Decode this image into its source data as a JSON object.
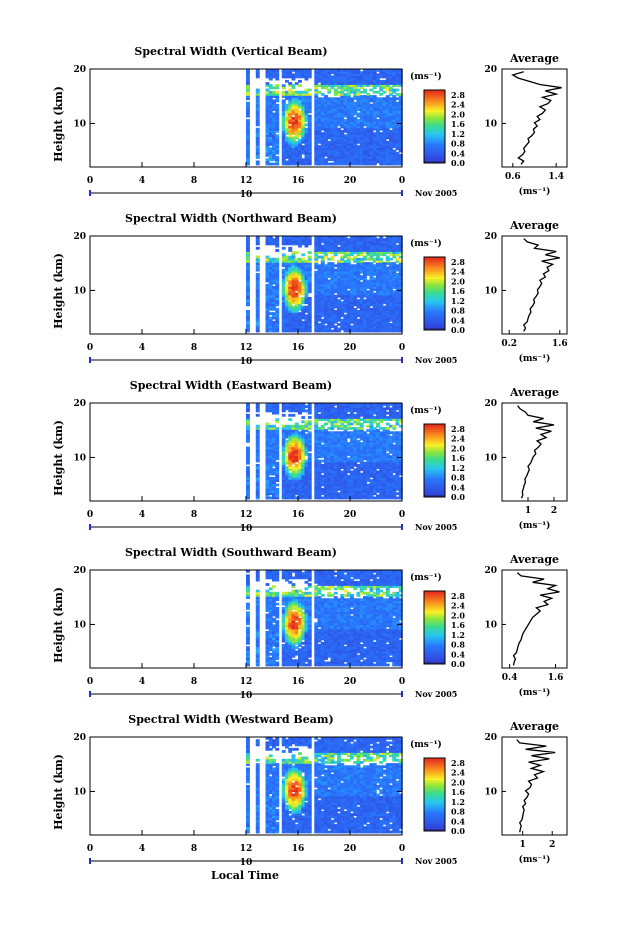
{
  "chart_data": {
    "type": "heatmap",
    "date_label": "Nov 2005",
    "x_label": "Local Time",
    "y_label": "Height (km)",
    "unit_label": "(ms⁻¹)",
    "avg_title": "Average",
    "time_ticks": [
      "0",
      "4",
      "8",
      "12",
      "16",
      "20",
      "0"
    ],
    "time_range": [
      0,
      24
    ],
    "day_label": "10",
    "height_range": [
      2,
      20
    ],
    "height_ticks": [
      "20",
      "10"
    ],
    "colorbar_ticks": [
      "2.8",
      "2.4",
      "2.0",
      "1.6",
      "1.2",
      "0.8",
      "0.4",
      "0.0"
    ],
    "colorbar_range": [
      0,
      3
    ],
    "panels": [
      {
        "title": "Spectral Width (Vertical Beam)",
        "avg_ticks": [
          "0.6",
          "1.4"
        ],
        "avg_xlim": [
          0.4,
          1.6
        ],
        "avg_profile": [
          0.75,
          0.8,
          0.7,
          0.78,
          0.82,
          0.8,
          0.85,
          0.9,
          0.88,
          0.95,
          1.0,
          0.98,
          1.05,
          1.0,
          1.1,
          1.05,
          1.15,
          1.2,
          1.1,
          1.25,
          1.3,
          1.15,
          1.4,
          1.2,
          1.5,
          1.1,
          0.9,
          0.7,
          0.6,
          0.8
        ]
      },
      {
        "title": "Spectral Width (Northward Beam)",
        "avg_ticks": [
          "0.2",
          "1.6"
        ],
        "avg_xlim": [
          0.0,
          1.8
        ],
        "avg_profile": [
          0.6,
          0.65,
          0.6,
          0.7,
          0.72,
          0.75,
          0.8,
          0.78,
          0.85,
          0.9,
          0.88,
          0.95,
          1.0,
          0.98,
          1.05,
          1.1,
          1.05,
          1.2,
          1.15,
          1.3,
          1.25,
          1.4,
          1.1,
          1.6,
          1.2,
          1.5,
          0.9,
          1.0,
          0.7,
          0.6
        ]
      },
      {
        "title": "Spectral Width (Eastward Beam)",
        "avg_ticks": [
          "1",
          "2"
        ],
        "avg_xlim": [
          0.0,
          2.5
        ],
        "avg_profile": [
          0.75,
          0.8,
          0.78,
          0.82,
          0.85,
          0.9,
          0.88,
          0.95,
          1.0,
          1.05,
          1.0,
          1.1,
          1.15,
          1.2,
          1.3,
          1.25,
          1.4,
          1.5,
          1.35,
          1.7,
          1.5,
          1.9,
          1.3,
          2.0,
          1.2,
          1.6,
          1.0,
          0.9,
          0.7,
          0.6
        ]
      },
      {
        "title": "Spectral Width (Southward Beam)",
        "avg_ticks": [
          "0.4",
          "1.6"
        ],
        "avg_xlim": [
          0.2,
          1.9
        ],
        "avg_profile": [
          0.5,
          0.52,
          0.55,
          0.5,
          0.58,
          0.6,
          0.62,
          0.65,
          0.7,
          0.72,
          0.75,
          0.8,
          0.85,
          0.9,
          0.95,
          1.0,
          1.1,
          1.2,
          1.1,
          1.4,
          1.3,
          1.5,
          1.2,
          1.7,
          1.4,
          1.6,
          1.0,
          1.3,
          0.7,
          0.6
        ]
      },
      {
        "title": "Spectral Width (Westward Beam)",
        "avg_ticks": [
          "1",
          "2"
        ],
        "avg_xlim": [
          0.3,
          2.5
        ],
        "avg_profile": [
          0.9,
          0.92,
          0.95,
          0.9,
          0.98,
          1.0,
          1.02,
          1.05,
          1.0,
          1.1,
          1.05,
          1.15,
          1.2,
          1.1,
          1.25,
          1.3,
          1.2,
          1.5,
          1.4,
          1.7,
          1.3,
          1.6,
          1.2,
          1.9,
          1.3,
          2.1,
          1.1,
          1.8,
          0.9,
          0.8
        ]
      }
    ]
  }
}
